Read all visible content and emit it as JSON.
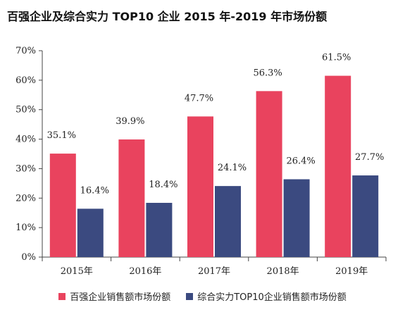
{
  "chart_data": {
    "type": "bar",
    "title": "百强企业及综合实力 TOP10 企业 2015 年-2019 年市场份额",
    "categories": [
      "2015年",
      "2016年",
      "2017年",
      "2018年",
      "2019年"
    ],
    "series": [
      {
        "name": "百强企业销售额市场份额",
        "color": "#e9435e",
        "values": [
          35.1,
          39.9,
          47.7,
          56.3,
          61.5
        ],
        "labels": [
          "35.1%",
          "39.9%",
          "47.7%",
          "56.3%",
          "61.5%"
        ]
      },
      {
        "name": "综合实力TOP10企业销售额市场份额",
        "color": "#3b4a80",
        "values": [
          16.4,
          18.4,
          24.1,
          26.4,
          27.7
        ],
        "labels": [
          "16.4%",
          "18.4%",
          "24.1%",
          "26.4%",
          "27.7%"
        ]
      }
    ],
    "yticks": [
      "0%",
      "10%",
      "20%",
      "30%",
      "40%",
      "50%",
      "60%",
      "70%"
    ],
    "ylim": [
      0,
      70
    ],
    "grid": false,
    "legend_position": "bottom"
  }
}
